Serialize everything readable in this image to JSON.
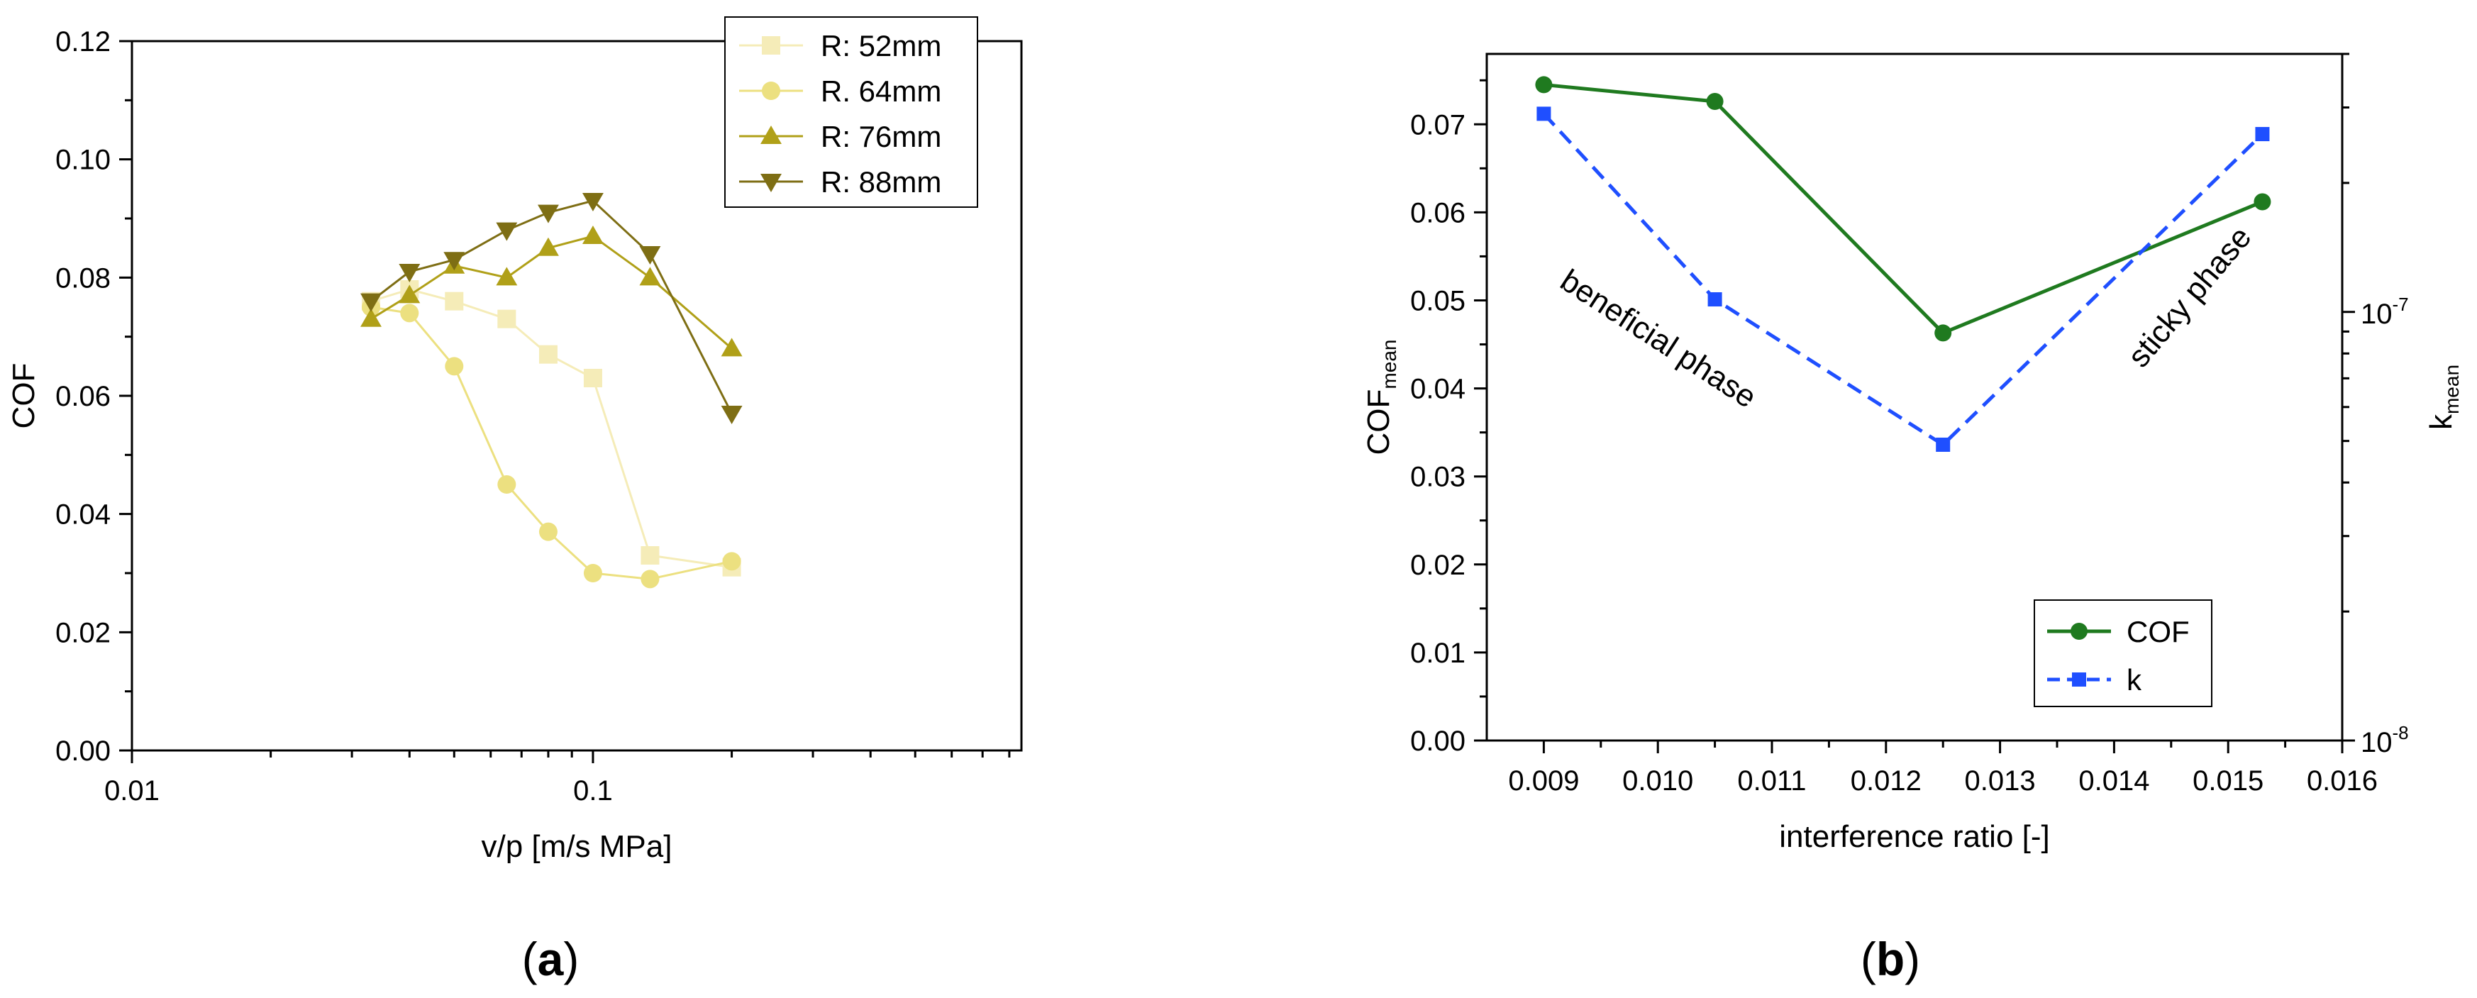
{
  "chart_data": [
    {
      "type": "line",
      "panel": "(a)",
      "xlabel": "v/p [m/s MPa]",
      "ylabel": "COF",
      "xscale": "log",
      "xlim": [
        0.01,
        0.85
      ],
      "ylim": [
        0,
        0.12
      ],
      "x_ticks": [
        0.01,
        0.1
      ],
      "x_tick_labels": [
        "0.01",
        "0.1"
      ],
      "y_ticks": [
        0,
        0.02,
        0.04,
        0.06,
        0.08,
        0.1,
        0.12
      ],
      "y_tick_labels": [
        "0.00",
        "0.02",
        "0.04",
        "0.06",
        "0.08",
        "0.10",
        "0.12"
      ],
      "legend_position": "top-right",
      "grid": false,
      "series": [
        {
          "name": "R: 52mm",
          "marker": "square",
          "color": "#f5ecb8",
          "x": [
            0.033,
            0.04,
            0.05,
            0.065,
            0.08,
            0.1,
            0.133,
            0.2
          ],
          "y": [
            0.076,
            0.078,
            0.076,
            0.073,
            0.067,
            0.063,
            0.033,
            0.031
          ]
        },
        {
          "name": "R. 64mm",
          "marker": "circle",
          "color": "#ece080",
          "x": [
            0.033,
            0.04,
            0.05,
            0.065,
            0.08,
            0.1,
            0.133,
            0.2
          ],
          "y": [
            0.075,
            0.074,
            0.065,
            0.045,
            0.037,
            0.03,
            0.029,
            0.032
          ]
        },
        {
          "name": "R: 76mm",
          "marker": "triangle-up",
          "color": "#b0a018",
          "x": [
            0.033,
            0.04,
            0.05,
            0.065,
            0.08,
            0.1,
            0.133,
            0.2
          ],
          "y": [
            0.073,
            0.077,
            0.082,
            0.08,
            0.085,
            0.087,
            0.08,
            0.068
          ]
        },
        {
          "name": "R: 88mm",
          "marker": "triangle-down",
          "color": "#7e6e14",
          "x": [
            0.033,
            0.04,
            0.05,
            0.065,
            0.08,
            0.1,
            0.133,
            0.2
          ],
          "y": [
            0.076,
            0.081,
            0.083,
            0.088,
            0.091,
            0.093,
            0.084,
            0.057
          ]
        }
      ]
    },
    {
      "type": "line",
      "panel": "(b)",
      "xlabel": "interference ratio [-]",
      "ylabel_main": "COF",
      "ylabel_sub": "mean",
      "y2label_main": "k",
      "y2label_sub": "mean",
      "xlim": [
        0.0085,
        0.016
      ],
      "ylim": [
        0,
        0.078
      ],
      "y2scale": "log",
      "y2lim": [
        1e-08,
        4e-07
      ],
      "x_ticks": [
        0.009,
        0.01,
        0.011,
        0.012,
        0.013,
        0.014,
        0.015,
        0.016
      ],
      "x_tick_labels": [
        "0.009",
        "0.010",
        "0.011",
        "0.012",
        "0.013",
        "0.014",
        "0.015",
        "0.016"
      ],
      "y_ticks": [
        0,
        0.01,
        0.02,
        0.03,
        0.04,
        0.05,
        0.06,
        0.07
      ],
      "y_tick_labels": [
        "0.00",
        "0.01",
        "0.02",
        "0.03",
        "0.04",
        "0.05",
        "0.06",
        "0.07"
      ],
      "y2_ticks": [
        1e-08,
        1e-07
      ],
      "y2_tick_base": "10",
      "y2_tick_exponents": [
        "-8",
        "-7"
      ],
      "legend_position": "bottom-right",
      "grid": false,
      "annotations": [
        "beneficial phase",
        "sticky phase"
      ],
      "series": [
        {
          "name": "COF",
          "axis": "left",
          "marker": "circle",
          "color": "#1f7a1f",
          "dash": "solid",
          "x": [
            0.009,
            0.0105,
            0.0125,
            0.0153
          ],
          "y": [
            0.0745,
            0.0726,
            0.0463,
            0.0612
          ]
        },
        {
          "name": "k",
          "axis": "right",
          "marker": "square",
          "color": "#1f4fff",
          "dash": "dashed",
          "x": [
            0.009,
            0.0105,
            0.0125,
            0.0153
          ],
          "y": [
            2.9e-07,
            1.07e-07,
            4.9e-08,
            2.6e-07
          ]
        }
      ]
    }
  ],
  "panel_labels": {
    "a": "a",
    "b": "b"
  }
}
